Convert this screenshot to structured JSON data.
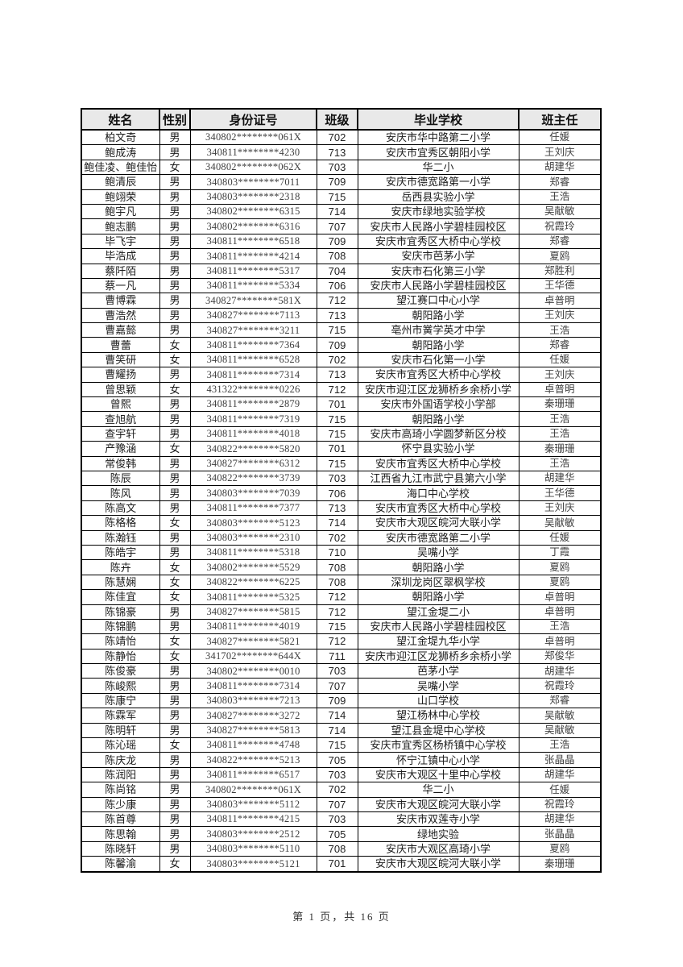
{
  "page": {
    "footer": "第 1 页，共 16 页"
  },
  "colors": {
    "header_bg": "#e9e9e9",
    "border": "#000000",
    "muted_text": "#3f3f3f"
  },
  "table": {
    "headers": [
      "姓名",
      "性别",
      "身份证号",
      "班级",
      "毕业学校",
      "班主任"
    ],
    "rows": [
      {
        "name": "柏文奇",
        "gender": "男",
        "id": "340802********061X",
        "class": "702",
        "school": "安庆市华中路第二小学",
        "teacher": "任媛"
      },
      {
        "name": "鲍成涛",
        "gender": "男",
        "id": "340811********4230",
        "class": "713",
        "school": "安庆市宜秀区朝阳小学",
        "teacher": "王刘庆"
      },
      {
        "name": "鲍佳凌、鲍佳怡",
        "gender": "女",
        "id": "340802********062X",
        "class": "703",
        "school": "华二小",
        "teacher": "胡建华"
      },
      {
        "name": "鲍清辰",
        "gender": "男",
        "id": "340803********7011",
        "class": "709",
        "school": "安庆市德宽路第一小学",
        "teacher": "郑睿"
      },
      {
        "name": "鲍翊荣",
        "gender": "男",
        "id": "340803********2318",
        "class": "715",
        "school": "岳西县实验小学",
        "teacher": "王浩"
      },
      {
        "name": "鲍宇凡",
        "gender": "男",
        "id": "340802********6315",
        "class": "714",
        "school": "安庆市绿地实验学校",
        "teacher": "吴献敏"
      },
      {
        "name": "鲍志鹏",
        "gender": "男",
        "id": "340802********6316",
        "class": "707",
        "school": "安庆市人民路小学碧桂园校区",
        "teacher": "祝霞玲"
      },
      {
        "name": "毕飞宇",
        "gender": "男",
        "id": "340811********6518",
        "class": "709",
        "school": "安庆市宜秀区大桥中心学校",
        "teacher": "郑睿"
      },
      {
        "name": "毕浩成",
        "gender": "男",
        "id": "340811********4214",
        "class": "708",
        "school": "安庆市芭茅小学",
        "teacher": "夏鸥"
      },
      {
        "name": "蔡阡陌",
        "gender": "男",
        "id": "340811********5317",
        "class": "704",
        "school": "安庆市石化第三小学",
        "teacher": "郑胜利"
      },
      {
        "name": "蔡一凡",
        "gender": "男",
        "id": "340811********5334",
        "class": "706",
        "school": "安庆市人民路小学碧桂园校区",
        "teacher": "王华德"
      },
      {
        "name": "曹博霖",
        "gender": "男",
        "id": "340827********581X",
        "class": "712",
        "school": "望江赛口中心小学",
        "teacher": "卓普明"
      },
      {
        "name": "曹浩然",
        "gender": "男",
        "id": "340827********7113",
        "class": "713",
        "school": "朝阳路小学",
        "teacher": "王刘庆"
      },
      {
        "name": "曹嘉懿",
        "gender": "男",
        "id": "340827********3211",
        "class": "715",
        "school": "亳州市黉学英才中学",
        "teacher": "王浩"
      },
      {
        "name": "曹蕾",
        "gender": "女",
        "id": "340811********7364",
        "class": "709",
        "school": "朝阳路小学",
        "teacher": "郑睿"
      },
      {
        "name": "曹笑研",
        "gender": "女",
        "id": "340811********6528",
        "class": "702",
        "school": "安庆市石化第一小学",
        "teacher": "任媛"
      },
      {
        "name": "曹耀扬",
        "gender": "男",
        "id": "340811********7314",
        "class": "713",
        "school": "安庆市宜秀区大桥中心学校",
        "teacher": "王刘庆"
      },
      {
        "name": "曾思颖",
        "gender": "女",
        "id": "431322********0226",
        "class": "712",
        "school": "安庆市迎江区龙狮桥乡余桥小学",
        "teacher": "卓普明"
      },
      {
        "name": "曾熙",
        "gender": "男",
        "id": "340811********2879",
        "class": "701",
        "school": "安庆市外国语学校小学部",
        "teacher": "秦珊珊"
      },
      {
        "name": "查旭航",
        "gender": "男",
        "id": "340811********7319",
        "class": "715",
        "school": "朝阳路小学",
        "teacher": "王浩"
      },
      {
        "name": "查宇轩",
        "gender": "男",
        "id": "340811********4018",
        "class": "715",
        "school": "安庆市高琦小学圆梦新区分校",
        "teacher": "王浩"
      },
      {
        "name": "产豫涵",
        "gender": "女",
        "id": "340822********5820",
        "class": "701",
        "school": "怀宁县实验小学",
        "teacher": "秦珊珊"
      },
      {
        "name": "常俊韩",
        "gender": "男",
        "id": "340827********6312",
        "class": "715",
        "school": "安庆市宜秀区大桥中心学校",
        "teacher": "王浩"
      },
      {
        "name": "陈辰",
        "gender": "男",
        "id": "340822********3739",
        "class": "703",
        "school": "江西省九江市武宁县第六小学",
        "teacher": "胡建华"
      },
      {
        "name": "陈风",
        "gender": "男",
        "id": "340803********7039",
        "class": "706",
        "school": "海口中心学校",
        "teacher": "王华德"
      },
      {
        "name": "陈高文",
        "gender": "男",
        "id": "340811********7377",
        "class": "713",
        "school": "安庆市宜秀区大桥中心学校",
        "teacher": "王刘庆"
      },
      {
        "name": "陈格格",
        "gender": "女",
        "id": "340803********5123",
        "class": "714",
        "school": "安庆市大观区皖河大联小学",
        "teacher": "吴献敏"
      },
      {
        "name": "陈瀚钰",
        "gender": "男",
        "id": "340803********2310",
        "class": "702",
        "school": "安庆市德宽路第二小学",
        "teacher": "任媛"
      },
      {
        "name": "陈皓宇",
        "gender": "男",
        "id": "340811********5318",
        "class": "710",
        "school": "吴嘴小学",
        "teacher": "丁霞"
      },
      {
        "name": "陈卉",
        "gender": "女",
        "id": "340802********5529",
        "class": "708",
        "school": "朝阳路小学",
        "teacher": "夏鸥"
      },
      {
        "name": "陈慧娴",
        "gender": "女",
        "id": "340822********6225",
        "class": "708",
        "school": "深圳龙岗区翠枫学校",
        "teacher": "夏鸥"
      },
      {
        "name": "陈佳宜",
        "gender": "女",
        "id": "340811********5325",
        "class": "712",
        "school": "朝阳路小学",
        "teacher": "卓普明"
      },
      {
        "name": "陈锦豪",
        "gender": "男",
        "id": "340827********5815",
        "class": "712",
        "school": "望江金堤二小",
        "teacher": "卓普明"
      },
      {
        "name": "陈锦鹏",
        "gender": "男",
        "id": "340811********4019",
        "class": "715",
        "school": "安庆市人民路小学碧桂园校区",
        "teacher": "王浩"
      },
      {
        "name": "陈靖怡",
        "gender": "女",
        "id": "340827********5821",
        "class": "712",
        "school": "望江金堤九华小学",
        "teacher": "卓普明"
      },
      {
        "name": "陈静怡",
        "gender": "女",
        "id": "341702********644X",
        "class": "711",
        "school": "安庆市迎江区龙狮桥乡余桥小学",
        "teacher": "郑俊华"
      },
      {
        "name": "陈俊豪",
        "gender": "男",
        "id": "340802********0010",
        "class": "703",
        "school": "芭茅小学",
        "teacher": "胡建华"
      },
      {
        "name": "陈峻熙",
        "gender": "男",
        "id": "340811********7314",
        "class": "707",
        "school": "吴嘴小学",
        "teacher": "祝霞玲"
      },
      {
        "name": "陈康宁",
        "gender": "男",
        "id": "340803********7213",
        "class": "709",
        "school": "山口学校",
        "teacher": "郑睿"
      },
      {
        "name": "陈霖军",
        "gender": "男",
        "id": "340827********3272",
        "class": "714",
        "school": "望江杨林中心学校",
        "teacher": "吴献敏"
      },
      {
        "name": "陈明轩",
        "gender": "男",
        "id": "340827********5813",
        "class": "714",
        "school": "望江县金堤中心学校",
        "teacher": "吴献敏"
      },
      {
        "name": "陈沁瑶",
        "gender": "女",
        "id": "340811********4748",
        "class": "715",
        "school": "安庆市宜秀区杨桥镇中心学校",
        "teacher": "王浩"
      },
      {
        "name": "陈庆龙",
        "gender": "男",
        "id": "340822********5213",
        "class": "705",
        "school": "怀宁江镇中心小学",
        "teacher": "张晶晶"
      },
      {
        "name": "陈润阳",
        "gender": "男",
        "id": "340811********6517",
        "class": "703",
        "school": "安庆市大观区十里中心学校",
        "teacher": "胡建华"
      },
      {
        "name": "陈尚铭",
        "gender": "男",
        "id": "340802********061X",
        "class": "702",
        "school": "华二小",
        "teacher": "任媛"
      },
      {
        "name": "陈少康",
        "gender": "男",
        "id": "340803********5112",
        "class": "707",
        "school": "安庆市大观区皖河大联小学",
        "teacher": "祝霞玲"
      },
      {
        "name": "陈首尊",
        "gender": "男",
        "id": "340811********4215",
        "class": "703",
        "school": "安庆市双莲寺小学",
        "teacher": "胡建华"
      },
      {
        "name": "陈思翰",
        "gender": "男",
        "id": "340803********2512",
        "class": "705",
        "school": "绿地实验",
        "teacher": "张晶晶"
      },
      {
        "name": "陈晓轩",
        "gender": "男",
        "id": "340803********5110",
        "class": "708",
        "school": "安庆市大观区高琦小学",
        "teacher": "夏鸥"
      },
      {
        "name": "陈馨渝",
        "gender": "女",
        "id": "340803********5121",
        "class": "701",
        "school": "安庆市大观区皖河大联小学",
        "teacher": "秦珊珊"
      }
    ]
  }
}
